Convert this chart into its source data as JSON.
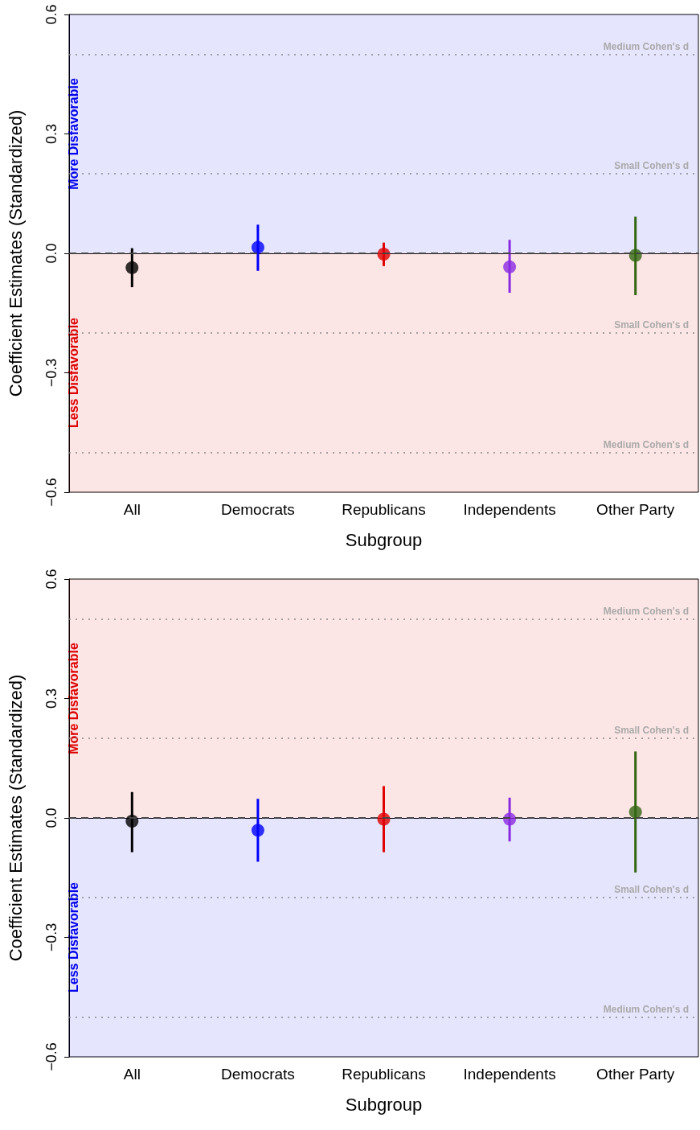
{
  "chart_data": [
    {
      "type": "scatter",
      "categories": [
        "All",
        "Democrats",
        "Republicans",
        "Independents",
        "Other Party"
      ],
      "xlabel": "Subgroup",
      "ylabel": "Coefficient Estimates (Standardized)",
      "marker": "circle",
      "values": [
        -0.036,
        0.015,
        -0.002,
        -0.034,
        -0.005
      ],
      "errors": [
        [
          -0.085,
          0.013
        ],
        [
          -0.044,
          0.072
        ],
        [
          -0.032,
          0.027
        ],
        [
          -0.099,
          0.034
        ],
        [
          -0.105,
          0.092
        ]
      ],
      "colors": [
        "#000000",
        "#0000ff",
        "#e00000",
        "#8a2be2",
        "#336611"
      ],
      "ylim": [
        -0.6,
        0.6
      ],
      "yticks": [
        {
          "value": -0.6,
          "label": "−0.6"
        },
        {
          "value": -0.3,
          "label": "−0.3"
        },
        {
          "value": 0,
          "label": "0.0"
        },
        {
          "value": 0.3,
          "label": "0.3"
        },
        {
          "value": 0.6,
          "label": "0.6"
        }
      ],
      "bands": [
        {
          "axis": "y",
          "from": 0,
          "to": 0.6,
          "label": "More Disfavorable",
          "color": "#0000ee"
        },
        {
          "axis": "y",
          "from": -0.6,
          "to": 0,
          "label": "Less Disfavorable",
          "color": "#dd0000"
        }
      ],
      "ref_lines": [
        {
          "axis": "y",
          "value": 0.5,
          "label": "Medium Cohen's d",
          "line_style": "dotted",
          "color": "#888888"
        },
        {
          "axis": "y",
          "value": 0.2,
          "label": "Small Cohen's d",
          "line_style": "dotted",
          "color": "#888888"
        },
        {
          "axis": "y",
          "value": -0.2,
          "label": "Small Cohen's d",
          "line_style": "dotted",
          "color": "#888888"
        },
        {
          "axis": "y",
          "value": -0.5,
          "label": "Medium Cohen's d",
          "line_style": "dotted",
          "color": "#888888"
        },
        {
          "axis": "y",
          "value": 0,
          "label": null,
          "line_style": "dashed",
          "color": "#444444"
        }
      ]
    },
    {
      "type": "scatter",
      "categories": [
        "All",
        "Democrats",
        "Republicans",
        "Independents",
        "Other Party"
      ],
      "xlabel": "Subgroup",
      "ylabel": "Coefficient Estimates (Standardized)",
      "marker": "circle",
      "values": [
        -0.008,
        -0.031,
        -0.003,
        -0.003,
        0.015
      ],
      "errors": [
        [
          -0.086,
          0.065
        ],
        [
          -0.11,
          0.048
        ],
        [
          -0.086,
          0.08
        ],
        [
          -0.059,
          0.051
        ],
        [
          -0.137,
          0.167
        ]
      ],
      "colors": [
        "#000000",
        "#0000ff",
        "#e00000",
        "#8a2be2",
        "#336611"
      ],
      "ylim": [
        -0.6,
        0.6
      ],
      "yticks": [
        {
          "value": -0.6,
          "label": "−0.6"
        },
        {
          "value": -0.3,
          "label": "−0.3"
        },
        {
          "value": 0,
          "label": "0.0"
        },
        {
          "value": 0.3,
          "label": "0.3"
        },
        {
          "value": 0.6,
          "label": "0.6"
        }
      ],
      "bands": [
        {
          "axis": "y",
          "from": 0,
          "to": 0.6,
          "label": "More Disfavorable",
          "color": "#dd0000"
        },
        {
          "axis": "y",
          "from": -0.6,
          "to": 0,
          "label": "Less Disfavorable",
          "color": "#0000ee"
        }
      ],
      "ref_lines": [
        {
          "axis": "y",
          "value": 0.5,
          "label": "Medium Cohen's d",
          "line_style": "dotted",
          "color": "#888888"
        },
        {
          "axis": "y",
          "value": 0.2,
          "label": "Small Cohen's d",
          "line_style": "dotted",
          "color": "#888888"
        },
        {
          "axis": "y",
          "value": -0.2,
          "label": "Small Cohen's d",
          "line_style": "dotted",
          "color": "#888888"
        },
        {
          "axis": "y",
          "value": -0.5,
          "label": "Medium Cohen's d",
          "line_style": "dotted",
          "color": "#888888"
        },
        {
          "axis": "y",
          "value": 0,
          "label": null,
          "line_style": "dashed",
          "color": "#444444"
        }
      ]
    }
  ]
}
